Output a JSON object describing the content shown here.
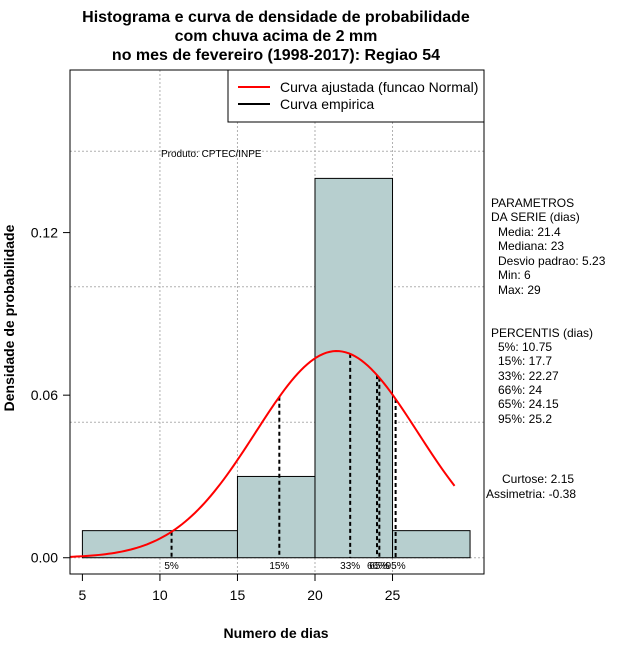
{
  "chart_data": {
    "type": "bar",
    "title_lines": [
      "Histograma e curva de densidade de probabilidade",
      "com chuva acima de 2 mm",
      "no mes de fevereiro (1998-2017): Regiao 54"
    ],
    "xlabel": "Numero de dias",
    "ylabel": "Densidade de probabilidade",
    "xlim": [
      4.2,
      30.9
    ],
    "ylim": [
      -0.006,
      0.18
    ],
    "x_ticks": [
      5,
      10,
      15,
      20,
      25
    ],
    "y_ticks": [
      0.0,
      0.06,
      0.12
    ],
    "y_tick_labels": [
      "0.00",
      "0.06",
      "0.12"
    ],
    "grid_x": [
      10,
      15,
      20,
      25
    ],
    "grid_y": [
      0.05,
      0.1,
      0.15
    ],
    "bins": [
      {
        "from": 5,
        "to": 15,
        "density": 0.01
      },
      {
        "from": 15,
        "to": 20,
        "density": 0.03
      },
      {
        "from": 20,
        "to": 25,
        "density": 0.14
      },
      {
        "from": 25,
        "to": 30,
        "density": 0.01
      }
    ],
    "fitted_curve": {
      "mean": 21.4,
      "sd": 5.23,
      "x_from": 4.2,
      "x_to": 29
    },
    "percentile_lines": [
      {
        "label": "5%",
        "value": 10.75
      },
      {
        "label": "15%",
        "value": 17.7
      },
      {
        "label": "33%",
        "value": 22.27
      },
      {
        "label": "66%",
        "value": 24
      },
      {
        "label": "65%",
        "value": 24.15
      },
      {
        "label": "95%",
        "value": 25.2
      }
    ],
    "legend": [
      {
        "label": "Curva ajustada (funcao Normal)",
        "color": "#ff0000"
      },
      {
        "label": "Curva empirica",
        "color": "#000000"
      }
    ],
    "legend_position": "top-right",
    "credit": "Produto: CPTEC/INPE",
    "bar_color": "#b7cfcf",
    "curve_color": "#ff0000",
    "grid_color": "#b0b0b0"
  },
  "side_panel": {
    "params_title_1": "PARAMETROS",
    "params_title_2": "DA SERIE (dias)",
    "params": [
      "Media: 21.4",
      "Mediana: 23",
      "Desvio padrao: 5.23",
      "Min: 6",
      "Max: 29"
    ],
    "percentis_title": "PERCENTIS (dias)",
    "percentis": [
      "5%: 10.75",
      "15%: 17.7",
      "33%: 22.27",
      "66%: 24",
      "65%: 24.15",
      "95%: 25.2"
    ],
    "curtose": "Curtose: 2.15",
    "assimetria": "Assimetria: -0.38"
  }
}
